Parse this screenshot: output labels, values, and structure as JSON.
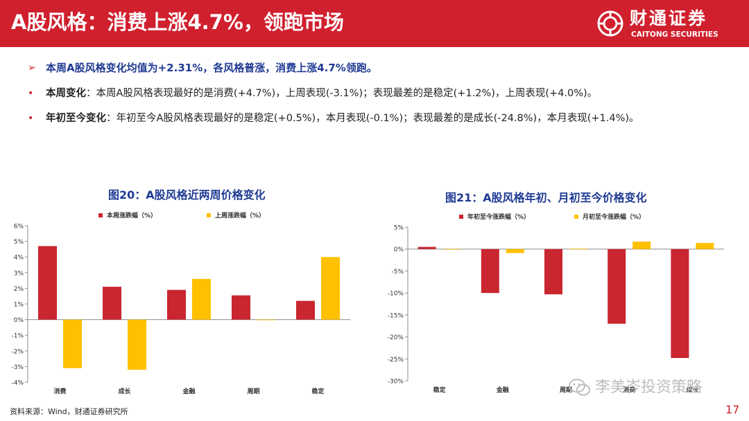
{
  "header": {
    "title": "A股风格：消费上涨4.7%，领跑市场",
    "logo_cn": "财通证券",
    "logo_en": "CAITONG SECURITIES"
  },
  "bullets": [
    {
      "marker": "➢",
      "text": "本周A股风格变化均值为+2.31%，各风格普涨，消费上涨4.7%领跑。"
    },
    {
      "marker": "•",
      "label": "本周变化",
      "text": "：本周A股风格表现最好的是消费(+4.7%)，上周表现(-3.1%)；表现最差的是稳定(+1.2%)，上周表现(+4.0%)。"
    },
    {
      "marker": "•",
      "label": "年初至今变化",
      "text": "：年初至今A股风格表现最好的是稳定(+0.5%)，本月表现(-0.1%)；表现最差的是成长(-24.8%)，本月表现(+1.4%)。"
    }
  ],
  "charts": {
    "left_title": "图20：A股风格近两周价格变化",
    "right_title": "图21：A股风格年初、月初至今价格变化"
  },
  "chart_data": [
    {
      "type": "bar",
      "title": "图20：A股风格近两周价格变化",
      "categories": [
        "消费",
        "成长",
        "金融",
        "周期",
        "稳定"
      ],
      "series": [
        {
          "name": "本周涨跌幅（%）",
          "values": [
            4.7,
            2.1,
            1.9,
            1.55,
            1.2
          ],
          "color": "#c9262f"
        },
        {
          "name": "上周涨跌幅（%）",
          "values": [
            -3.1,
            -3.2,
            2.6,
            0.0,
            4.0
          ],
          "color": "#ffc000"
        }
      ],
      "yticks": [
        "6%",
        "5%",
        "4%",
        "3%",
        "2%",
        "1%",
        "0%",
        "-1%",
        "-2%",
        "-3%",
        "-4%"
      ],
      "ylim": [
        -4,
        6
      ],
      "legend": "top"
    },
    {
      "type": "bar",
      "title": "图21：A股风格年初、月初至今价格变化",
      "categories": [
        "稳定",
        "金融",
        "周期",
        "消费",
        "成长"
      ],
      "series": [
        {
          "name": "年初至今涨跌幅（%）",
          "values": [
            0.5,
            -10.0,
            -10.3,
            -17.0,
            -24.8
          ],
          "color": "#c9262f"
        },
        {
          "name": "月初至今涨跌幅（%）",
          "values": [
            -0.1,
            -0.9,
            0.1,
            1.7,
            1.4
          ],
          "color": "#ffc000"
        }
      ],
      "yticks": [
        "5%",
        "0%",
        "-5%",
        "-10%",
        "-15%",
        "-20%",
        "-25%",
        "-30%"
      ],
      "ylim": [
        -30,
        5
      ],
      "legend": "top"
    }
  ],
  "footer": {
    "source": "资料来源：Wind，财通证券研究所",
    "page": "17",
    "watermark": "李美岑投资策略"
  },
  "colors": {
    "brand_red": "#d0202e",
    "title_blue": "#1f3a93",
    "bar_red": "#c9262f",
    "bar_yellow": "#ffc000"
  }
}
